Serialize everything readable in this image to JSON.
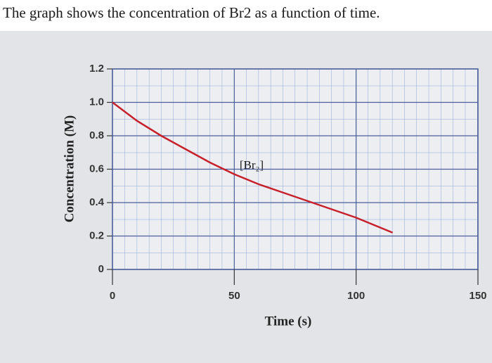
{
  "chart_data": {
    "type": "line",
    "title": "The graph shows the concentration of Br2 as a function of time.",
    "annotation": "[Br₂]",
    "xlabel": "Time (s)",
    "ylabel": "Concentration (M)",
    "x": [
      0,
      10,
      20,
      30,
      40,
      50,
      60,
      70,
      80,
      90,
      100,
      110,
      115
    ],
    "series": [
      {
        "name": "[Br₂]",
        "color": "#c8202a",
        "values": [
          1.0,
          0.89,
          0.8,
          0.72,
          0.64,
          0.57,
          0.51,
          0.46,
          0.41,
          0.36,
          0.31,
          0.25,
          0.22
        ]
      }
    ],
    "xlim": [
      0,
      150
    ],
    "ylim": [
      0,
      1.2
    ],
    "xticks": [
      0,
      50,
      100,
      150
    ],
    "yticks": [
      0,
      0.2,
      0.4,
      0.6,
      0.8,
      {
        "value": 1,
        "label": "1.0"
      },
      1.2
    ],
    "grid": true
  }
}
